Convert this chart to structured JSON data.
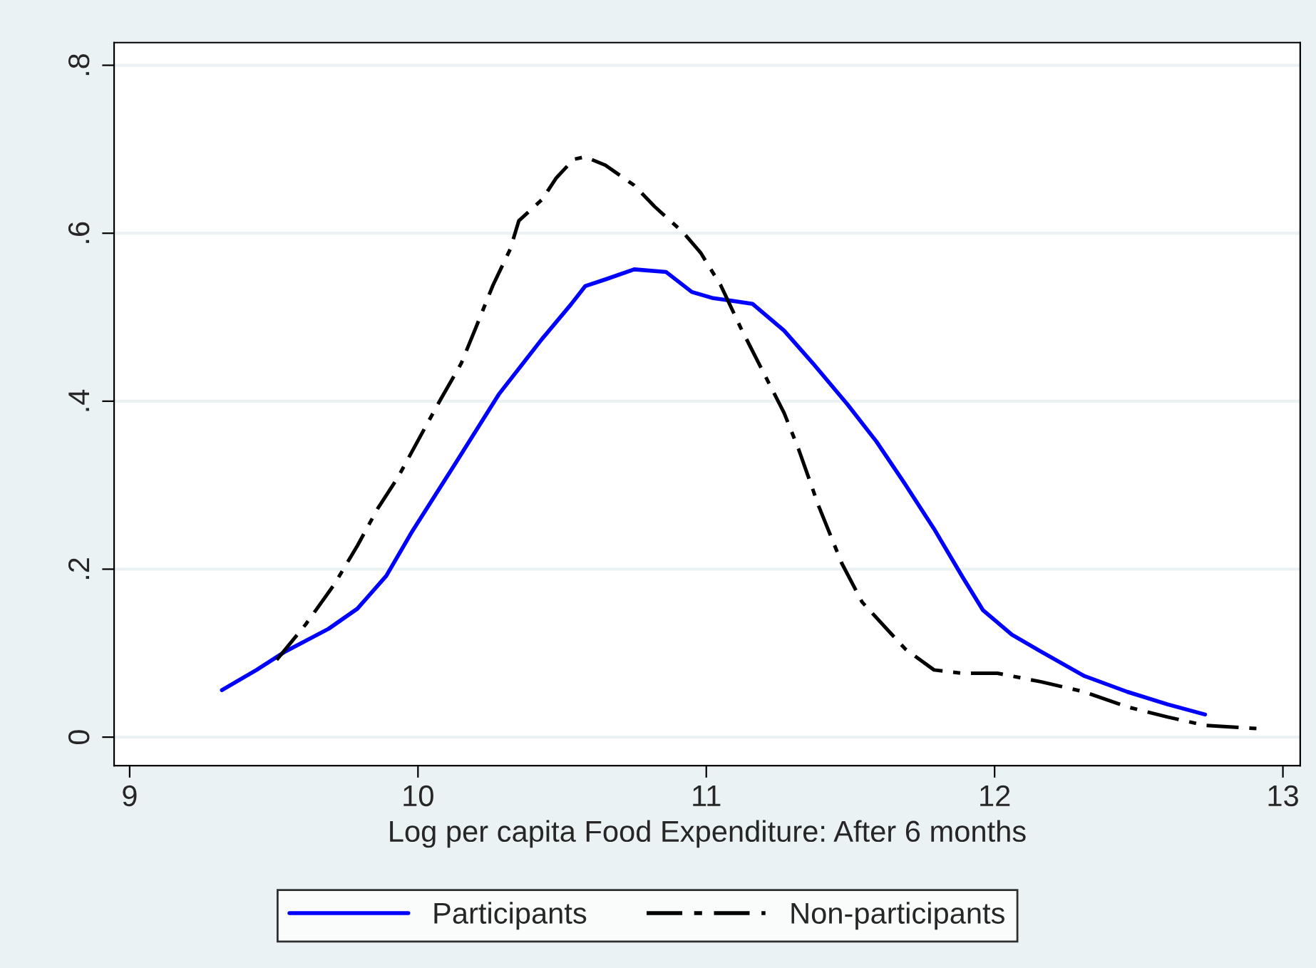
{
  "chart_data": {
    "type": "line",
    "xlabel": "Log per capita Food Expenditure: After 6 months",
    "xlim": [
      8.946,
      13.06
    ],
    "xticks": [
      9,
      10,
      11,
      12,
      13
    ],
    "ylim": [
      -0.034,
      0.827
    ],
    "yticks": [
      {
        "value": 0,
        "label": "0"
      },
      {
        "value": 0.2,
        "label": ".2"
      },
      {
        "value": 0.4,
        "label": ".4"
      },
      {
        "value": 0.6,
        "label": ".6"
      },
      {
        "value": 0.8,
        "label": ".8"
      }
    ],
    "grid": "y",
    "legend": "bottom",
    "marker": "none",
    "series": [
      {
        "name": "Participants",
        "color": "#0000ff",
        "line_style": "solid",
        "x": [
          9.32,
          9.44,
          9.54,
          9.69,
          9.79,
          9.89,
          9.98,
          10.13,
          10.28,
          10.43,
          10.53,
          10.58,
          10.65,
          10.75,
          10.86,
          10.95,
          11.02,
          11.16,
          11.27,
          11.37,
          11.49,
          11.59,
          11.69,
          11.79,
          11.89,
          11.96,
          12.06,
          12.16,
          12.31,
          12.46,
          12.6,
          12.73
        ],
        "values": [
          0.056,
          0.08,
          0.102,
          0.129,
          0.153,
          0.192,
          0.245,
          0.326,
          0.408,
          0.474,
          0.515,
          0.537,
          0.545,
          0.557,
          0.554,
          0.53,
          0.523,
          0.516,
          0.484,
          0.445,
          0.396,
          0.352,
          0.301,
          0.248,
          0.19,
          0.151,
          0.122,
          0.102,
          0.073,
          0.054,
          0.039,
          0.027
        ]
      },
      {
        "name": "Non-participants",
        "color": "#000000",
        "line_style": "dashdot",
        "x": [
          9.51,
          9.61,
          9.71,
          9.79,
          9.86,
          9.93,
          10.03,
          10.08,
          10.15,
          10.2,
          10.26,
          10.32,
          10.35,
          10.43,
          10.48,
          10.54,
          10.58,
          10.65,
          10.75,
          10.82,
          10.92,
          10.98,
          11.05,
          11.12,
          11.2,
          11.27,
          11.32,
          11.39,
          11.47,
          11.54,
          11.62,
          11.69,
          11.79,
          11.89,
          12.01,
          12.16,
          12.31,
          12.46,
          12.6,
          12.73,
          12.92
        ],
        "values": [
          0.092,
          0.134,
          0.182,
          0.228,
          0.272,
          0.309,
          0.372,
          0.403,
          0.445,
          0.487,
          0.538,
          0.581,
          0.615,
          0.64,
          0.666,
          0.688,
          0.691,
          0.681,
          0.657,
          0.632,
          0.601,
          0.577,
          0.538,
          0.487,
          0.433,
          0.386,
          0.343,
          0.275,
          0.207,
          0.161,
          0.131,
          0.105,
          0.08,
          0.076,
          0.076,
          0.066,
          0.054,
          0.036,
          0.024,
          0.014,
          0.01
        ]
      }
    ]
  }
}
